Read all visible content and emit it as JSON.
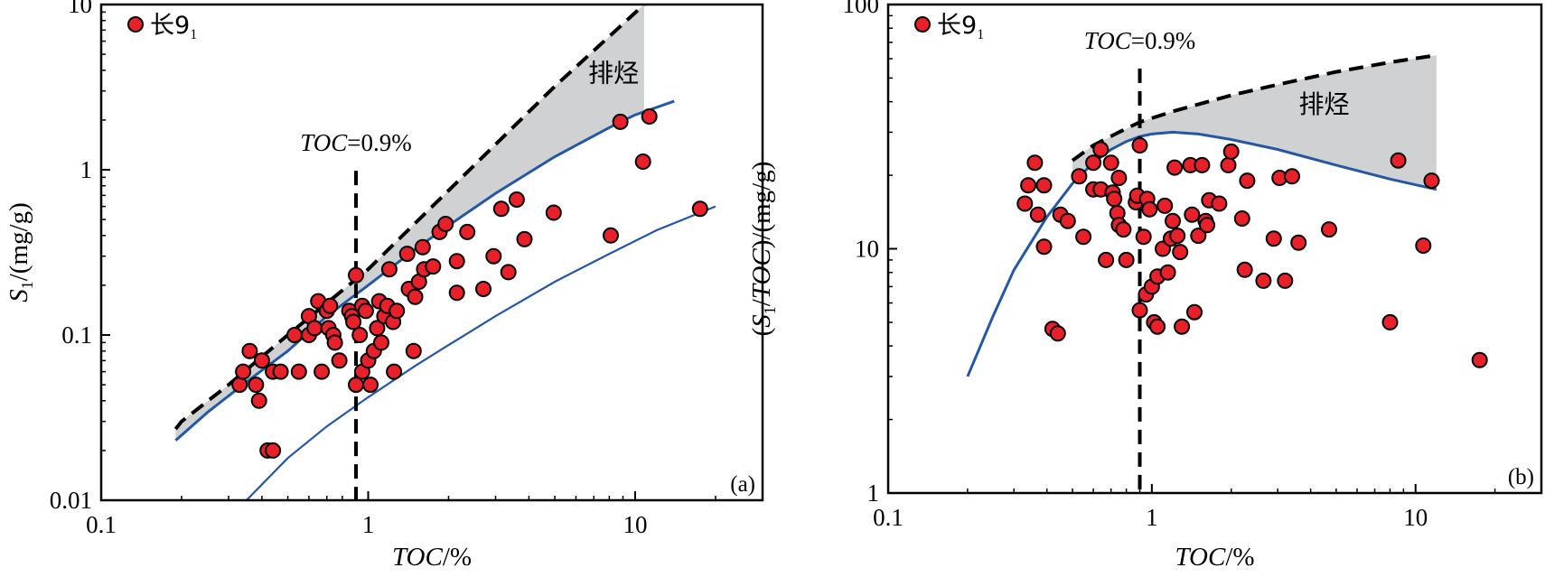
{
  "chart_data": [
    {
      "type": "scatter",
      "panel_label": "(a)",
      "x_scale": "log",
      "y_scale": "log",
      "xlim": [
        0.1,
        30
      ],
      "ylim": [
        0.01,
        10
      ],
      "xticks": [
        {
          "v": 0.1,
          "label": "0.1"
        },
        {
          "v": 1,
          "label": "1"
        },
        {
          "v": 10,
          "label": "10"
        }
      ],
      "yticks": [
        {
          "v": 0.01,
          "label": "0.01"
        },
        {
          "v": 0.1,
          "label": "0.1"
        },
        {
          "v": 1,
          "label": "1"
        },
        {
          "v": 10,
          "label": "10"
        }
      ],
      "xlabel": {
        "italic": "TOC",
        "rest": "/%"
      },
      "ylabel": {
        "S": "S",
        "sub": "1",
        "rest": "/(mg/g)"
      },
      "legend": {
        "label": "长9",
        "sub": "1",
        "color": "#e8202a"
      },
      "threshold": {
        "x": 0.9,
        "label_italic": "TOC",
        "label_rest": "=0.9%",
        "label_at": [
          0.9,
          1.3
        ]
      },
      "zone_label": {
        "text": "排烃",
        "at": [
          8.3,
          3.4
        ]
      },
      "zone_fill": "#d0d1d3",
      "dashed_curve": [
        [
          0.19,
          0.027
        ],
        [
          0.2,
          0.03
        ],
        [
          0.3,
          0.05
        ],
        [
          0.5,
          0.1
        ],
        [
          1,
          0.25
        ],
        [
          2,
          0.75
        ],
        [
          5,
          3.2
        ],
        [
          10.8,
          10
        ]
      ],
      "upper_curve": [
        [
          0.19,
          0.023
        ],
        [
          0.25,
          0.034
        ],
        [
          0.35,
          0.052
        ],
        [
          0.5,
          0.08
        ],
        [
          0.7,
          0.13
        ],
        [
          1,
          0.2
        ],
        [
          1.5,
          0.33
        ],
        [
          2,
          0.46
        ],
        [
          3,
          0.72
        ],
        [
          5,
          1.2
        ],
        [
          8,
          1.8
        ],
        [
          10,
          2.15
        ],
        [
          14,
          2.6
        ]
      ],
      "lower_curve": [
        [
          0.35,
          0.01
        ],
        [
          0.5,
          0.018
        ],
        [
          0.7,
          0.028
        ],
        [
          1,
          0.042
        ],
        [
          1.5,
          0.065
        ],
        [
          2,
          0.087
        ],
        [
          3,
          0.13
        ],
        [
          5,
          0.21
        ],
        [
          8,
          0.31
        ],
        [
          12,
          0.43
        ],
        [
          20,
          0.6
        ]
      ],
      "curve_color": "#2458a6",
      "points": [
        [
          0.33,
          0.05
        ],
        [
          0.34,
          0.06
        ],
        [
          0.36,
          0.08
        ],
        [
          0.38,
          0.05
        ],
        [
          0.39,
          0.04
        ],
        [
          0.4,
          0.07
        ],
        [
          0.42,
          0.02
        ],
        [
          0.44,
          0.02
        ],
        [
          0.44,
          0.06
        ],
        [
          0.47,
          0.06
        ],
        [
          0.53,
          0.1
        ],
        [
          0.55,
          0.06
        ],
        [
          0.6,
          0.1
        ],
        [
          0.6,
          0.13
        ],
        [
          0.63,
          0.11
        ],
        [
          0.65,
          0.16
        ],
        [
          0.67,
          0.06
        ],
        [
          0.7,
          0.14
        ],
        [
          0.71,
          0.11
        ],
        [
          0.72,
          0.15
        ],
        [
          0.74,
          0.1
        ],
        [
          0.75,
          0.09
        ],
        [
          0.78,
          0.07
        ],
        [
          0.85,
          0.14
        ],
        [
          0.87,
          0.13
        ],
        [
          0.88,
          0.12
        ],
        [
          0.9,
          0.05
        ],
        [
          0.9,
          0.23
        ],
        [
          0.93,
          0.1
        ],
        [
          0.95,
          0.06
        ],
        [
          0.95,
          0.15
        ],
        [
          0.98,
          0.14
        ],
        [
          1.0,
          0.07
        ],
        [
          1.02,
          0.05
        ],
        [
          1.05,
          0.08
        ],
        [
          1.08,
          0.11
        ],
        [
          1.1,
          0.16
        ],
        [
          1.12,
          0.09
        ],
        [
          1.15,
          0.13
        ],
        [
          1.18,
          0.15
        ],
        [
          1.2,
          0.25
        ],
        [
          1.24,
          0.12
        ],
        [
          1.25,
          0.06
        ],
        [
          1.28,
          0.14
        ],
        [
          1.4,
          0.31
        ],
        [
          1.42,
          0.19
        ],
        [
          1.48,
          0.08
        ],
        [
          1.5,
          0.17
        ],
        [
          1.55,
          0.21
        ],
        [
          1.6,
          0.34
        ],
        [
          1.62,
          0.25
        ],
        [
          1.75,
          0.26
        ],
        [
          1.85,
          0.42
        ],
        [
          1.95,
          0.47
        ],
        [
          2.15,
          0.18
        ],
        [
          2.15,
          0.28
        ],
        [
          2.35,
          0.42
        ],
        [
          2.7,
          0.19
        ],
        [
          2.95,
          0.3
        ],
        [
          3.15,
          0.58
        ],
        [
          3.35,
          0.24
        ],
        [
          3.6,
          0.66
        ],
        [
          3.85,
          0.38
        ],
        [
          4.95,
          0.55
        ],
        [
          8.1,
          0.4
        ],
        [
          8.8,
          1.95
        ],
        [
          10.7,
          1.12
        ],
        [
          11.3,
          2.1
        ],
        [
          17.5,
          0.58
        ]
      ]
    },
    {
      "type": "scatter",
      "panel_label": "(b)",
      "x_scale": "log",
      "y_scale": "log",
      "xlim": [
        0.1,
        30
      ],
      "ylim": [
        1,
        100
      ],
      "xticks": [
        {
          "v": 0.1,
          "label": "0.1"
        },
        {
          "v": 1,
          "label": "1"
        },
        {
          "v": 10,
          "label": "10"
        }
      ],
      "yticks": [
        {
          "v": 1,
          "label": "1"
        },
        {
          "v": 10,
          "label": "10"
        },
        {
          "v": 100,
          "label": "100"
        }
      ],
      "xlabel": {
        "italic": "TOC",
        "rest": "/%"
      },
      "ylabel": {
        "open": "(",
        "S": "S",
        "sub": "1",
        "slash": "/",
        "italic": "TOC",
        "rest": ")/(mg/g)"
      },
      "legend": {
        "label": "长9",
        "sub": "1",
        "color": "#e8202a"
      },
      "threshold": {
        "x": 0.9,
        "label_italic": "TOC",
        "label_rest": "=0.9%",
        "label_at": [
          0.9,
          66
        ]
      },
      "zone_label": {
        "text": "排烃",
        "at": [
          4.5,
          36
        ]
      },
      "zone_fill": "#d0d1d3",
      "dashed_curve": [
        [
          0.5,
          23
        ],
        [
          0.6,
          26.5
        ],
        [
          0.75,
          30
        ],
        [
          0.9,
          33
        ],
        [
          1.2,
          36.5
        ],
        [
          1.5,
          39
        ],
        [
          2,
          42.5
        ],
        [
          3,
          47
        ],
        [
          5,
          53
        ],
        [
          8,
          58
        ],
        [
          12,
          62
        ]
      ],
      "upper_curve": [
        [
          0.2,
          3
        ],
        [
          0.25,
          5.3
        ],
        [
          0.3,
          8.2
        ],
        [
          0.4,
          13.5
        ],
        [
          0.5,
          18.5
        ],
        [
          0.6,
          22.5
        ],
        [
          0.7,
          25.5
        ],
        [
          0.8,
          27.5
        ],
        [
          0.9,
          28.8
        ],
        [
          1,
          29.5
        ],
        [
          1.2,
          30
        ],
        [
          1.5,
          29.5
        ],
        [
          2,
          28
        ],
        [
          3,
          25.5
        ],
        [
          5,
          22
        ],
        [
          8,
          19.3
        ],
        [
          12,
          17.5
        ]
      ],
      "curve_color": "#2458a6",
      "points": [
        [
          0.33,
          15.3
        ],
        [
          0.34,
          18.2
        ],
        [
          0.36,
          22.5
        ],
        [
          0.37,
          13.8
        ],
        [
          0.39,
          18.2
        ],
        [
          0.39,
          10.2
        ],
        [
          0.42,
          4.7
        ],
        [
          0.44,
          4.5
        ],
        [
          0.45,
          13.8
        ],
        [
          0.48,
          13
        ],
        [
          0.53,
          19.8
        ],
        [
          0.55,
          11.2
        ],
        [
          0.6,
          17.5
        ],
        [
          0.6,
          22.5
        ],
        [
          0.64,
          25.5
        ],
        [
          0.64,
          17.5
        ],
        [
          0.67,
          9
        ],
        [
          0.7,
          22.5
        ],
        [
          0.71,
          17
        ],
        [
          0.72,
          16
        ],
        [
          0.74,
          14
        ],
        [
          0.75,
          19.5
        ],
        [
          0.75,
          12.5
        ],
        [
          0.78,
          12
        ],
        [
          0.8,
          9
        ],
        [
          0.87,
          15.5
        ],
        [
          0.88,
          16.5
        ],
        [
          0.9,
          5.6
        ],
        [
          0.9,
          26.5
        ],
        [
          0.93,
          11.2
        ],
        [
          0.95,
          6.5
        ],
        [
          0.96,
          16
        ],
        [
          0.98,
          14.5
        ],
        [
          1.0,
          7
        ],
        [
          1.02,
          5
        ],
        [
          1.05,
          7.7
        ],
        [
          1.05,
          4.8
        ],
        [
          1.1,
          10
        ],
        [
          1.12,
          15
        ],
        [
          1.15,
          8
        ],
        [
          1.18,
          11
        ],
        [
          1.2,
          13
        ],
        [
          1.22,
          21.5
        ],
        [
          1.25,
          11.3
        ],
        [
          1.28,
          9.7
        ],
        [
          1.3,
          4.8
        ],
        [
          1.4,
          22
        ],
        [
          1.42,
          13.8
        ],
        [
          1.45,
          5.5
        ],
        [
          1.5,
          11.3
        ],
        [
          1.55,
          22
        ],
        [
          1.6,
          13
        ],
        [
          1.62,
          12.5
        ],
        [
          1.65,
          15.8
        ],
        [
          1.8,
          15.3
        ],
        [
          1.95,
          22
        ],
        [
          2.0,
          25
        ],
        [
          2.2,
          13.3
        ],
        [
          2.25,
          8.2
        ],
        [
          2.3,
          19
        ],
        [
          2.65,
          7.4
        ],
        [
          2.9,
          11
        ],
        [
          3.05,
          19.5
        ],
        [
          3.2,
          7.4
        ],
        [
          3.4,
          19.8
        ],
        [
          3.6,
          10.6
        ],
        [
          4.7,
          12
        ],
        [
          8.0,
          5
        ],
        [
          8.6,
          23
        ],
        [
          10.7,
          10.3
        ],
        [
          11.5,
          19
        ],
        [
          17.5,
          3.5
        ]
      ]
    }
  ]
}
